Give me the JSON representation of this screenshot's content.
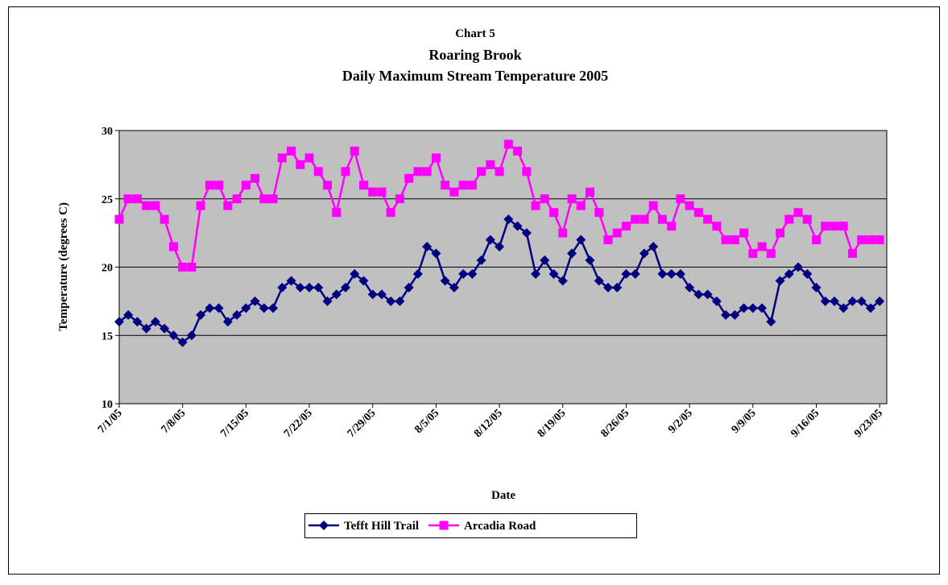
{
  "chart_data": {
    "type": "line",
    "title": [
      "Chart 5",
      "Roaring Brook",
      "Daily Maximum Stream Temperature 2005"
    ],
    "x_label": "Date",
    "y_label": "Temperature (degrees C)",
    "categories": [
      "7/1/05",
      null,
      null,
      null,
      null,
      null,
      null,
      "7/8/05",
      null,
      null,
      null,
      null,
      null,
      null,
      "7/15/05",
      null,
      null,
      null,
      null,
      null,
      null,
      "7/22/05",
      null,
      null,
      null,
      null,
      null,
      null,
      "7/29/05",
      null,
      null,
      null,
      null,
      null,
      null,
      "8/5/05",
      null,
      null,
      null,
      null,
      null,
      null,
      "8/12/05",
      null,
      null,
      null,
      null,
      null,
      null,
      "8/19/05",
      null,
      null,
      null,
      null,
      null,
      null,
      "8/26/05",
      null,
      null,
      null,
      null,
      null,
      null,
      "9/2/05",
      null,
      null,
      null,
      null,
      null,
      null,
      "9/9/05",
      null,
      null,
      null,
      null,
      null,
      null,
      "9/16/05",
      null,
      null,
      null,
      null,
      null,
      null,
      "9/23/05"
    ],
    "series": [
      {
        "name": "Tefft Hill Trail",
        "color": "#000080",
        "marker": "diamond",
        "values": [
          16,
          16.5,
          16,
          15.5,
          16,
          15.5,
          15,
          14.5,
          15,
          16.5,
          17,
          17,
          16,
          16.5,
          17,
          17.5,
          17,
          17,
          18.5,
          19,
          18.5,
          18.5,
          18.5,
          17.5,
          18,
          18.5,
          19.5,
          19,
          18,
          18,
          17.5,
          17.5,
          18.5,
          19.5,
          21.5,
          21,
          19,
          18.5,
          19.5,
          19.5,
          20.5,
          22,
          21.5,
          23.5,
          23,
          22.5,
          19.5,
          20.5,
          19.5,
          19,
          21,
          22,
          20.5,
          19,
          18.5,
          18.5,
          19.5,
          19.5,
          21,
          21.5,
          19.5,
          19.5,
          19.5,
          18.5,
          18,
          18,
          17.5,
          16.5,
          16.5,
          17,
          17,
          17,
          16,
          19,
          19.5,
          20,
          19.5,
          18.5,
          17.5,
          17.5,
          17,
          17.5,
          17.5,
          17,
          17.5
        ]
      },
      {
        "name": "Arcadia Road",
        "color": "#ff00ff",
        "marker": "square",
        "values": [
          23.5,
          25,
          25,
          24.5,
          24.5,
          23.5,
          21.5,
          20,
          20,
          24.5,
          26,
          26,
          24.5,
          25,
          26,
          26.5,
          25,
          25,
          28,
          28.5,
          27.5,
          28,
          27,
          26,
          24,
          27,
          28.5,
          26,
          25.5,
          25.5,
          24,
          25,
          26.5,
          27,
          27,
          28,
          26,
          25.5,
          26,
          26,
          27,
          27.5,
          27,
          29,
          28.5,
          27,
          24.5,
          25,
          24,
          22.5,
          25,
          24.5,
          25.5,
          24,
          22,
          22.5,
          23,
          23.5,
          23.5,
          24.5,
          23.5,
          23,
          25,
          24.5,
          24,
          23.5,
          23,
          22,
          22,
          22.5,
          21,
          21.5,
          21,
          22.5,
          23.5,
          24,
          23.5,
          22,
          23,
          23,
          23,
          21,
          22,
          22,
          22
        ]
      }
    ],
    "ylim": [
      10,
      30
    ],
    "yticks": [
      10,
      15,
      20,
      25,
      30
    ],
    "grid": true,
    "plot_background": "#c0c0c0",
    "legend": "bottom"
  }
}
